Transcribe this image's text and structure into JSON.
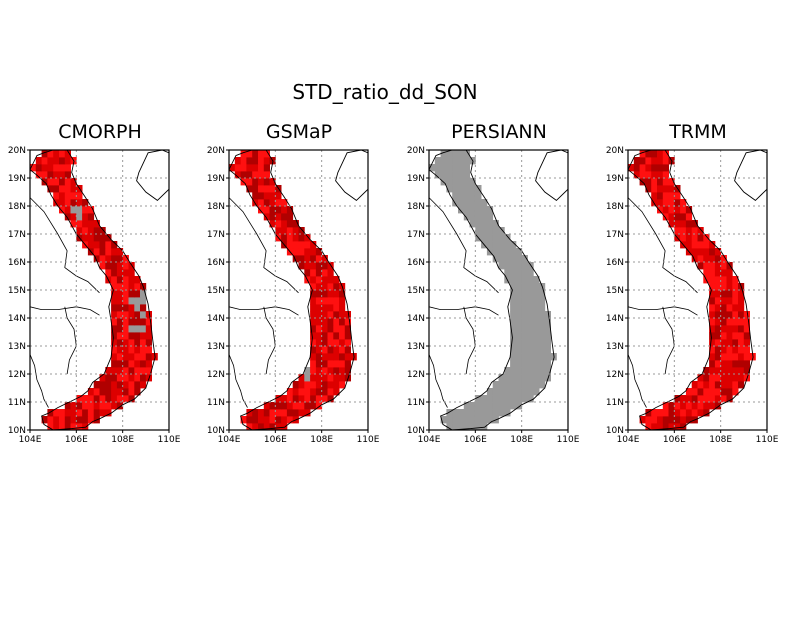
{
  "title": "STD_ratio_dd_SON",
  "panels": [
    {
      "name": "CMORPH",
      "fill": "red"
    },
    {
      "name": "GSMaP",
      "fill": "red"
    },
    {
      "name": "PERSIANN",
      "fill": "gray"
    },
    {
      "name": "TRMM",
      "fill": "red"
    }
  ],
  "x_ticks": [
    "104E",
    "106E",
    "108E",
    "110E"
  ],
  "y_ticks": [
    "10N",
    "11N",
    "12N",
    "13N",
    "14N",
    "15N",
    "16N",
    "17N",
    "18N",
    "19N",
    "20N"
  ],
  "lon_range": [
    104,
    110
  ],
  "lat_range": [
    10,
    20
  ],
  "colors": {
    "red_dark": "#b00000",
    "red_mid": "#dd0000",
    "red_bright": "#ff1010",
    "gray_missing": "#999999",
    "grid": "#999999",
    "coast": "#000000"
  }
}
